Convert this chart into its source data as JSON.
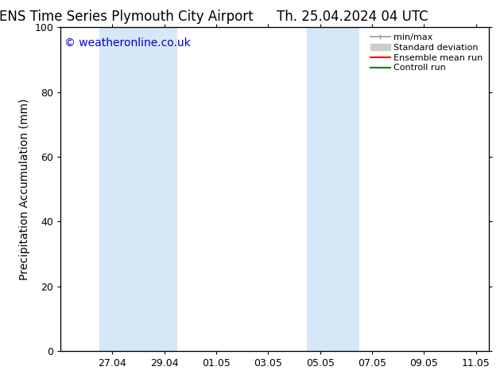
{
  "title_left": "ENS Time Series Plymouth City Airport",
  "title_right": "Th. 25.04.2024 04 UTC",
  "ylabel": "Precipitation Accumulation (mm)",
  "watermark": "© weatheronline.co.uk",
  "watermark_color": "#0000cc",
  "ylim": [
    0,
    100
  ],
  "yticks": [
    0,
    20,
    40,
    60,
    80,
    100
  ],
  "background_color": "#ffffff",
  "plot_bg_color": "#ffffff",
  "band_color": "#d6e8f7",
  "band1_x0": 1.5,
  "band1_x1": 4.5,
  "band2_x0": 9.5,
  "band2_x1": 11.5,
  "xlim_left": 0.0,
  "xlim_right": 16.5,
  "xtick_positions": [
    2,
    4,
    6,
    8,
    10,
    12,
    14,
    16
  ],
  "xtick_labels": [
    "27.04",
    "29.04",
    "01.05",
    "03.05",
    "05.05",
    "07.05",
    "09.05",
    "11.05"
  ],
  "legend_entries": [
    {
      "label": "min/max",
      "color": "#999999",
      "lw": 1.2
    },
    {
      "label": "Standard deviation",
      "color": "#cccccc",
      "lw": 7
    },
    {
      "label": "Ensemble mean run",
      "color": "#ff0000",
      "lw": 1.5
    },
    {
      "label": "Controll run",
      "color": "#008000",
      "lw": 1.5
    }
  ],
  "font_family": "DejaVu Sans",
  "title_fontsize": 12,
  "tick_fontsize": 9,
  "label_fontsize": 10,
  "watermark_fontsize": 10,
  "legend_fontsize": 8
}
